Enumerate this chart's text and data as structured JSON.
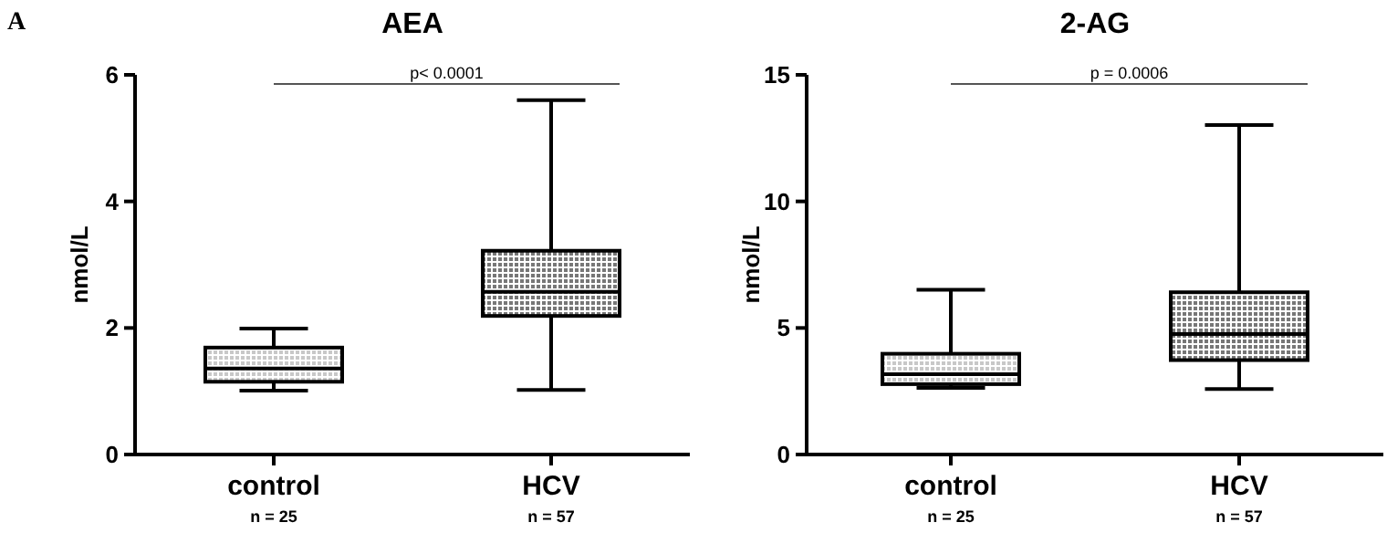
{
  "chart_data": [
    {
      "type": "box",
      "title": "AEA",
      "ylabel": "nmol/L",
      "categories": [
        "control",
        "HCV"
      ],
      "ylim": [
        0,
        6
      ],
      "yticks": [
        0,
        2,
        4,
        6
      ],
      "boxes": [
        {
          "low": 1.01,
          "q1": 1.15,
          "median": 1.36,
          "q3": 1.69,
          "high": 1.99
        },
        {
          "low": 1.02,
          "q1": 2.19,
          "median": 2.57,
          "q3": 3.22,
          "high": 5.6
        }
      ],
      "annotations": [
        "A",
        "p< 0.0001",
        "n = 25",
        "n = 57"
      ]
    },
    {
      "type": "box",
      "title": "2-AG",
      "ylabel": "nmol/L",
      "categories": [
        "control",
        "HCV"
      ],
      "ylim": [
        0,
        15
      ],
      "yticks": [
        0,
        5,
        10,
        15
      ],
      "boxes": [
        {
          "low": 2.63,
          "q1": 2.78,
          "median": 3.17,
          "q3": 3.98,
          "high": 6.51
        },
        {
          "low": 2.59,
          "q1": 3.73,
          "median": 4.76,
          "q3": 6.41,
          "high": 13.02
        }
      ],
      "annotations": [
        "p = 0.0006",
        "n = 25",
        "n = 57"
      ]
    }
  ]
}
